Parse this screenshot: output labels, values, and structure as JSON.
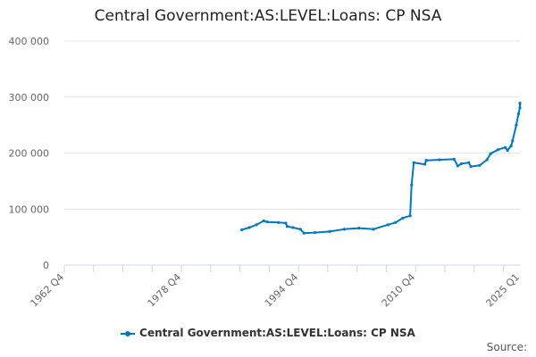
{
  "title": "Central Government:AS:LEVEL:Loans: CP NSA",
  "source_label": "Source:",
  "chart_data": {
    "type": "line",
    "title": "Central Government:AS:LEVEL:Loans: CP NSA",
    "xlabel": "",
    "ylabel": "",
    "xlim": [
      1962.75,
      2025.0
    ],
    "ylim": [
      0,
      400000
    ],
    "yticks": [
      0,
      100000,
      200000,
      300000,
      400000
    ],
    "ytick_labels": [
      "0",
      "100 000",
      "200 000",
      "300 000",
      "400 000"
    ],
    "xticks": [
      1962.75,
      1978.75,
      1994.75,
      2010.75,
      2025.0
    ],
    "xtick_labels": [
      "1962 Q4",
      "1978 Q4",
      "1994 Q4",
      "2010 Q4",
      "2025 Q1"
    ],
    "grid": true,
    "legend": "bottom",
    "color": "#0077c0",
    "series": [
      {
        "name": "Central Government:AS:LEVEL:Loans: CP NSA",
        "x": [
          1987.0,
          1988.0,
          1989.0,
          1990.0,
          1990.5,
          1992.0,
          1993.0,
          1993.2,
          1994.0,
          1995.0,
          1995.5,
          1997.0,
          1999.0,
          2001.0,
          2003.0,
          2005.0,
          2007.0,
          2008.0,
          2009.0,
          2010.0,
          2010.2,
          2010.5,
          2012.0,
          2012.2,
          2014.0,
          2016.0,
          2016.5,
          2017.0,
          2018.0,
          2018.3,
          2019.5,
          2020.5,
          2021.0,
          2022.0,
          2023.0,
          2023.3,
          2023.8,
          2024.0,
          2024.5,
          2024.8,
          2025.0,
          2025.0
        ],
        "y": [
          63000,
          67000,
          72000,
          79000,
          77000,
          76000,
          75000,
          69000,
          67000,
          64000,
          57000,
          58000,
          60000,
          64000,
          66000,
          64000,
          72000,
          76000,
          84000,
          88000,
          143000,
          183000,
          180000,
          187000,
          188000,
          189000,
          177000,
          181000,
          183000,
          176000,
          178000,
          188000,
          199000,
          206000,
          210000,
          205000,
          213000,
          222000,
          250000,
          270000,
          281000,
          289000
        ]
      }
    ]
  }
}
